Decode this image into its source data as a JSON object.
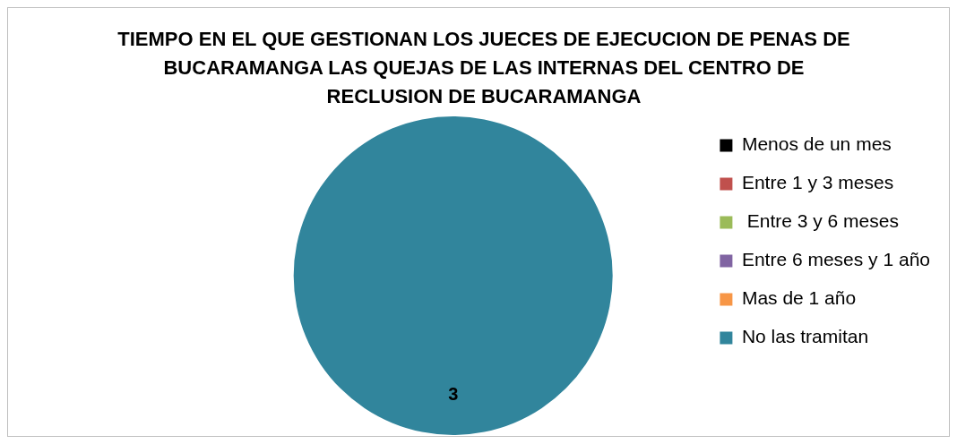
{
  "chart_data": {
    "type": "pie",
    "title": "TIEMPO EN EL QUE GESTIONAN LOS JUECES DE EJECUCION DE PENAS DE BUCARAMANGA LAS QUEJAS DE LAS INTERNAS DEL CENTRO DE RECLUSION DE BUCARAMANGA",
    "categories": [
      "Menos de un mes",
      "Entre 1 y 3 meses",
      " Entre 3 y 6 meses",
      "Entre 6 meses y 1 año",
      "Mas de 1 año",
      "No las tramitan"
    ],
    "values": [
      0,
      0,
      0,
      0,
      0,
      3
    ],
    "colors": [
      "#000000",
      "#c0504d",
      "#9bbb59",
      "#8064a2",
      "#f79646",
      "#31859c"
    ],
    "value_labels": [
      null,
      null,
      null,
      null,
      null,
      "3"
    ],
    "legend": "right"
  }
}
